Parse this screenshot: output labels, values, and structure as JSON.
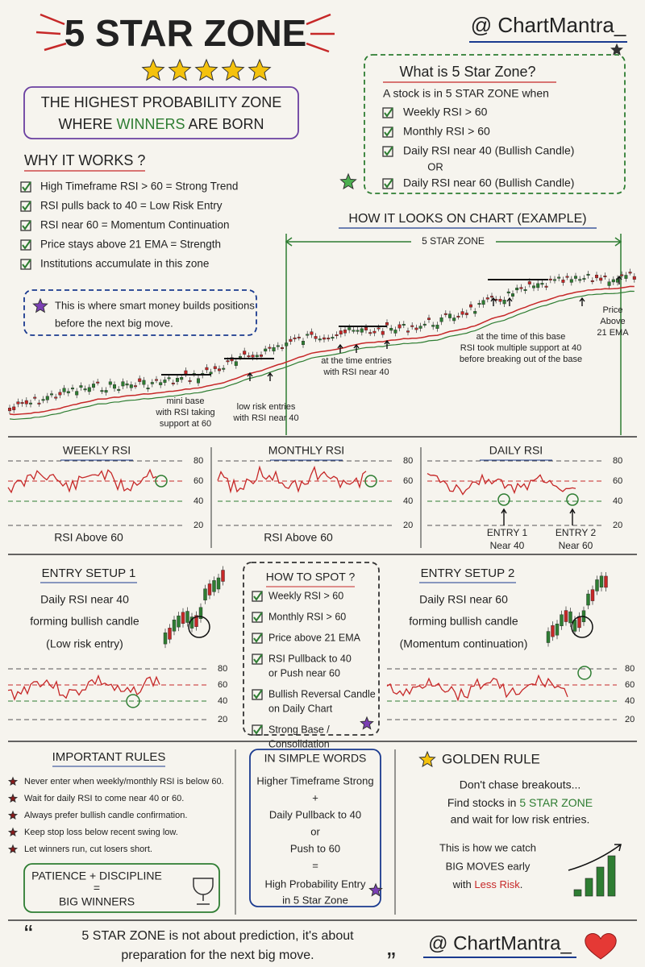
{
  "header": {
    "title": "5 STAR ZONE",
    "handle": "@ ChartMantra_",
    "tagline_1": "THE HIGHEST PROBABILITY ZONE",
    "tagline_2": [
      "WHERE ",
      "WINNERS",
      " ARE BORN"
    ]
  },
  "what_is": {
    "title": "What is 5 Star Zone?",
    "intro": "A stock is in 5 STAR ZONE when",
    "items": [
      "Weekly RSI > 60",
      "Monthly RSI > 60",
      "Daily RSI near 40 (Bullish Candle)",
      "Daily RSI near 60 (Bullish Candle)"
    ],
    "or": "OR"
  },
  "why": {
    "title": "WHY IT WORKS ?",
    "items": [
      "High Timeframe RSI > 60 = Strong Trend",
      "RSI pulls back to 40 = Low Risk Entry",
      "RSI near 60 = Momentum Continuation",
      "Price stays above 21 EMA = Strength",
      "Institutions accumulate in this zone"
    ],
    "note": [
      "This is where smart money builds positions",
      "before the next big move."
    ]
  },
  "example": {
    "title": "HOW IT LOOKS ON CHART (EXAMPLE)",
    "zone_label": "5 STAR ZONE",
    "annotations": [
      [
        "mini base",
        "with RSI taking",
        "support at 60"
      ],
      [
        "low risk entries",
        "with RSI near 40"
      ],
      [
        "at the time entries",
        "with RSI near 40"
      ],
      [
        "at the time of this base",
        "RSI took multiple support at 40",
        "before breaking out of the base"
      ],
      [
        "Price",
        "Above",
        "21 EMA"
      ]
    ]
  },
  "rsi_panels": [
    {
      "title": "WEEKLY RSI",
      "levels": [
        "80",
        "60",
        "40",
        "20"
      ],
      "caption": "RSI Above 60"
    },
    {
      "title": "MONTHLY RSI",
      "levels": [
        "80",
        "60",
        "40",
        "20"
      ],
      "caption": "RSI Above 60"
    },
    {
      "title": "DAILY RSI",
      "levels": [
        "80",
        "60",
        "40",
        "20"
      ],
      "entries": [
        [
          "ENTRY 1",
          "Near 40"
        ],
        [
          "ENTRY 2",
          "Near 60"
        ]
      ]
    }
  ],
  "setup_1": {
    "title": "ENTRY SETUP 1",
    "lines": [
      "Daily RSI near 40",
      "forming bullish candle",
      "(Low risk entry)"
    ],
    "levels": [
      "80",
      "60",
      "40",
      "20"
    ]
  },
  "how_to_spot": {
    "title": "HOW TO SPOT ?",
    "items": [
      [
        "Weekly RSI > 60"
      ],
      [
        "Monthly RSI > 60"
      ],
      [
        "Price above 21 EMA"
      ],
      [
        "RSI Pullback to 40",
        "or Push near 60"
      ],
      [
        "Bullish Reversal Candle",
        "on Daily Chart"
      ],
      [
        "Strong Base /",
        "Consolidation"
      ]
    ]
  },
  "setup_2": {
    "title": "ENTRY SETUP 2",
    "lines": [
      "Daily RSI near 60",
      "forming bullish candle",
      "(Momentum continuation)"
    ],
    "levels": [
      "80",
      "60",
      "40",
      "20"
    ]
  },
  "rules": {
    "title": "IMPORTANT RULES",
    "items": [
      "Never enter when weekly/monthly RSI is below 60.",
      "Wait for daily RSI to come near 40 or 60.",
      "Always prefer bullish candle confirmation.",
      "Keep stop loss below recent swing low.",
      "Let winners run, cut losers short."
    ],
    "box": [
      "PATIENCE + DISCIPLINE",
      "=",
      "BIG WINNERS"
    ]
  },
  "simple": {
    "title": "IN SIMPLE WORDS",
    "lines": [
      "Higher Timeframe Strong",
      "+",
      "Daily Pullback to 40",
      "or",
      "Push to 60",
      "="
    ],
    "result": [
      "High Probability Entry",
      "in 5 Star Zone"
    ]
  },
  "golden": {
    "title": "GOLDEN RULE",
    "line_1": "Don't chase breakouts...",
    "line_2": [
      "Find stocks in ",
      "5 STAR ZONE"
    ],
    "line_3": "and wait for low risk entries.",
    "line_4": "This is how we catch",
    "line_5": "BIG MOVES early",
    "line_6": [
      "with ",
      "Less Risk",
      "."
    ]
  },
  "footer": {
    "quote_1": "5 STAR ZONE is not about prediction, it's about",
    "quote_2": "preparation for the next big move.",
    "handle": "@ ChartMantra_"
  }
}
